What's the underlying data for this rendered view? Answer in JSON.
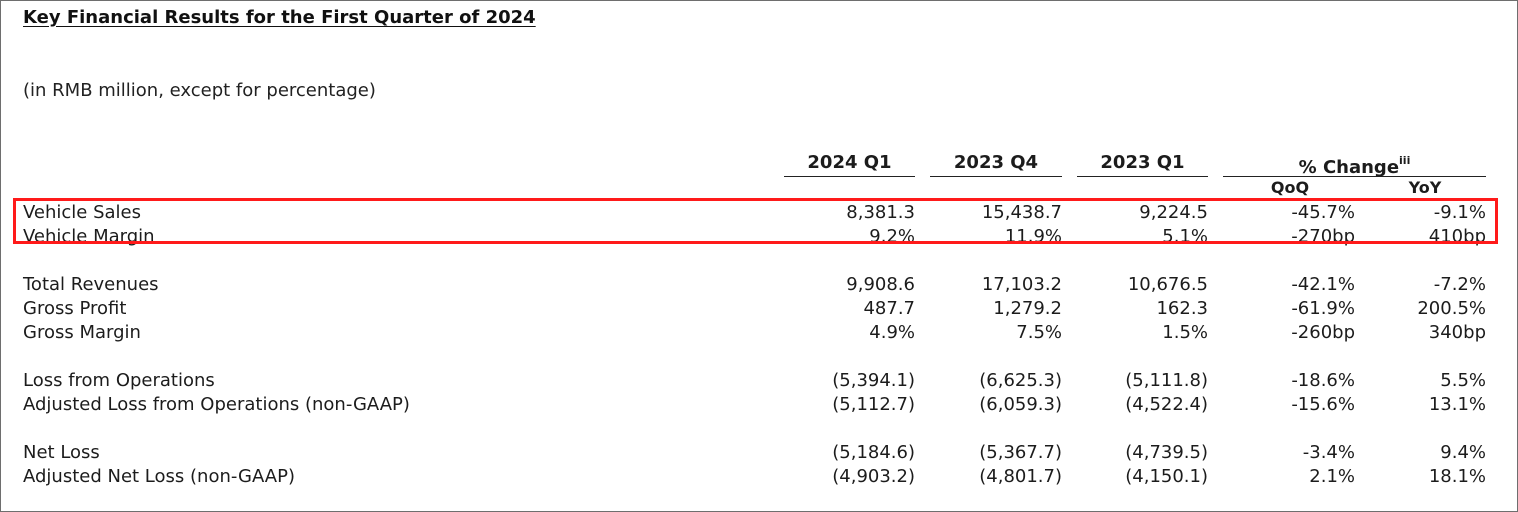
{
  "title": "Key Financial Results for the First Quarter of 2024",
  "note": "(in RMB million, except for percentage)",
  "columns": {
    "q1_2024": "2024 Q1",
    "q4_2023": "2023 Q4",
    "q1_2023": "2023 Q1",
    "change": "% Change",
    "change_sup": "iii",
    "qoq": "QoQ",
    "yoy": "YoY"
  },
  "rows": [
    {
      "label": "Vehicle Sales",
      "q1_2024": "8,381.3",
      "q4_2023": "15,438.7",
      "q1_2023": "9,224.5",
      "qoq": "-45.7%",
      "yoy": "-9.1%"
    },
    {
      "label": "Vehicle Margin",
      "q1_2024": "9.2%",
      "q4_2023": "11.9%",
      "q1_2023": "5.1%",
      "qoq": "-270bp",
      "yoy": "410bp"
    },
    {
      "label": "Total Revenues",
      "q1_2024": "9,908.6",
      "q4_2023": "17,103.2",
      "q1_2023": "10,676.5",
      "qoq": "-42.1%",
      "yoy": "-7.2%"
    },
    {
      "label": "Gross Profit",
      "q1_2024": "487.7",
      "q4_2023": "1,279.2",
      "q1_2023": "162.3",
      "qoq": "-61.9%",
      "yoy": "200.5%"
    },
    {
      "label": "Gross Margin",
      "q1_2024": "4.9%",
      "q4_2023": "7.5%",
      "q1_2023": "1.5%",
      "qoq": "-260bp",
      "yoy": "340bp"
    },
    {
      "label": "Loss from Operations",
      "q1_2024": "(5,394.1)",
      "q4_2023": "(6,625.3)",
      "q1_2023": "(5,111.8)",
      "qoq": "-18.6%",
      "yoy": "5.5%"
    },
    {
      "label": "Adjusted Loss from Operations (non-GAAP)",
      "q1_2024": "(5,112.7)",
      "q4_2023": "(6,059.3)",
      "q1_2023": "(4,522.4)",
      "qoq": "-15.6%",
      "yoy": "13.1%"
    },
    {
      "label": "Net Loss",
      "q1_2024": "(5,184.6)",
      "q4_2023": "(5,367.7)",
      "q1_2023": "(4,739.5)",
      "qoq": "-3.4%",
      "yoy": "9.4%"
    },
    {
      "label": "Adjusted Net Loss (non-GAAP)",
      "q1_2024": "(4,903.2)",
      "q4_2023": "(4,801.7)",
      "q1_2023": "(4,150.1)",
      "qoq": "2.1%",
      "yoy": "18.1%"
    }
  ],
  "highlight_color": "#ff1a1a"
}
